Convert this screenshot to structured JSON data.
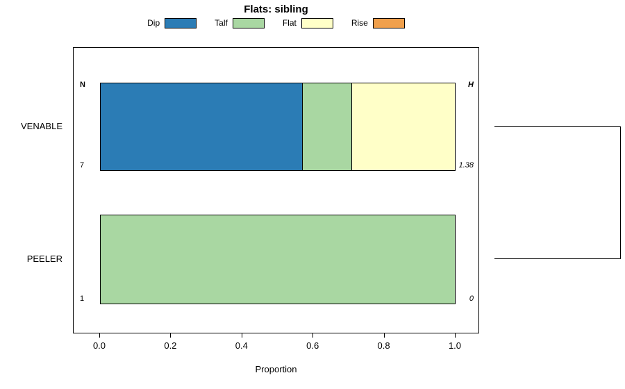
{
  "chart_data": {
    "type": "bar",
    "orientation": "horizontal",
    "stacked": true,
    "title": "Flats: sibling",
    "xlabel": "Proportion",
    "xlim": [
      0,
      1
    ],
    "xticks": [
      "0.0",
      "0.2",
      "0.4",
      "0.6",
      "0.8",
      "1.0"
    ],
    "grid": false,
    "legend_position": "top-center",
    "legend": [
      {
        "label": "Dip",
        "color": "#2b7cb5"
      },
      {
        "label": "Talf",
        "color": "#a9d7a2"
      },
      {
        "label": "Flat",
        "color": "#ffffc8"
      },
      {
        "label": "Rise",
        "color": "#f0a04c"
      }
    ],
    "corner_labels": {
      "top_left": "N",
      "top_right": "H"
    },
    "rows": [
      {
        "category": "VENABLE",
        "n": "7",
        "h": "1.38",
        "segments": [
          {
            "name": "Dip",
            "value": 0.57
          },
          {
            "name": "Talf",
            "value": 0.14
          },
          {
            "name": "Flat",
            "value": 0.29
          }
        ]
      },
      {
        "category": "PEELER",
        "n": "1",
        "h": "0",
        "segments": [
          {
            "name": "Talf",
            "value": 1.0
          }
        ]
      }
    ]
  }
}
